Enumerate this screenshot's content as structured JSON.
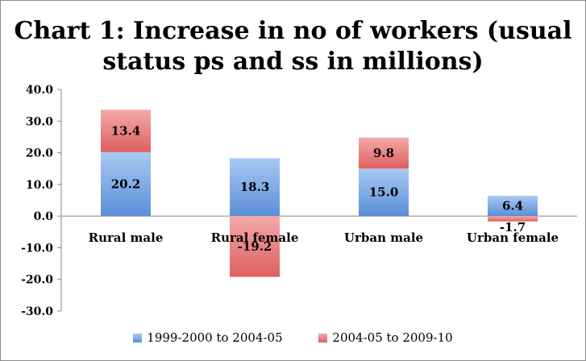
{
  "chart_data": {
    "type": "bar",
    "stacked": true,
    "title_lines": [
      "Chart 1: Increase in no of workers (usual",
      "status ps and ss in millions)"
    ],
    "categories": [
      "Rural male",
      "Rural female",
      "Urban male",
      "Urban female"
    ],
    "series": [
      {
        "name": "1999-2000 to 2004-05",
        "values": [
          20.2,
          18.3,
          15.0,
          6.4
        ],
        "labels": [
          "20.2",
          "18.3",
          "15.0",
          "6.4"
        ],
        "color": "#6e9fe0"
      },
      {
        "name": "2004-05 to 2009-10",
        "values": [
          13.4,
          -19.2,
          9.8,
          -1.7
        ],
        "labels": [
          "13.4",
          "-19.2",
          "9.8",
          "-1.7"
        ],
        "color": "#e57373"
      }
    ],
    "ylim": [
      -30,
      40
    ],
    "yticks": [
      "40.0",
      "30.0",
      "20.0",
      "10.0",
      "0.0",
      "-10.0",
      "-20.0",
      "-30.0"
    ],
    "grid": false,
    "legend_position": "bottom"
  }
}
